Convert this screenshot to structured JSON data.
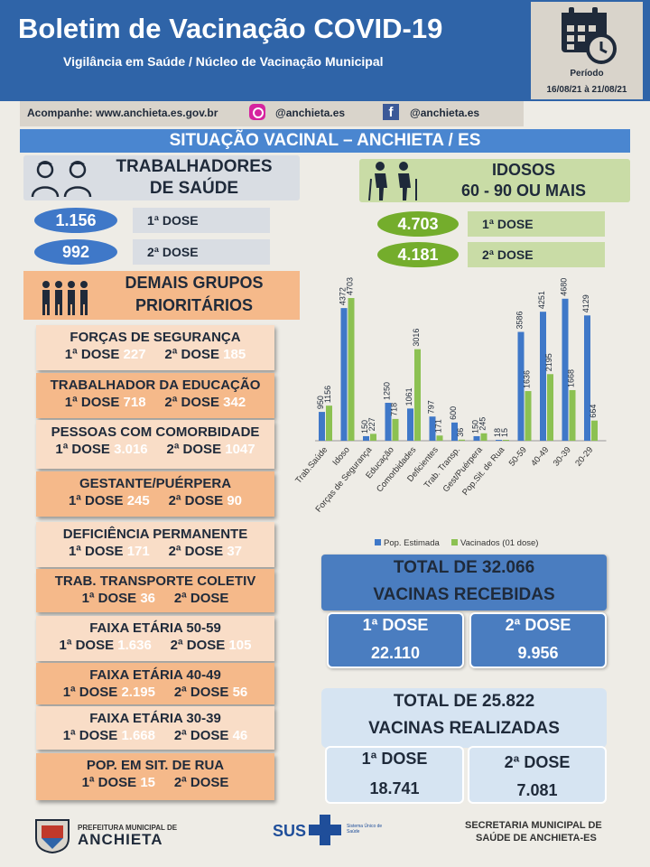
{
  "header": {
    "title": "Boletim de Vacinação COVID-19",
    "subtitle": "Vigilância em Saúde / Núcleo de Vacinação Municipal",
    "period_label": "Período",
    "period_dates": "16/08/21 à 21/08/21"
  },
  "follow": {
    "site": "Acompanhe: www.anchieta.es.gov.br",
    "instagram": "@anchieta.es",
    "facebook": "@anchieta.es"
  },
  "situacao": "SITUAÇÃO VACINAL – ANCHIETA / ES",
  "saude": {
    "title_line1": "TRABALHADORES",
    "title_line2": "DE SAÚDE",
    "dose1_value": "1.156",
    "dose1_label": "1ª DOSE",
    "dose2_value": "992",
    "dose2_label": "2ª DOSE"
  },
  "idosos": {
    "title_line1": "IDOSOS",
    "title_line2": "60 - 90 OU MAIS",
    "dose1_value": "4.703",
    "dose1_label": "1ª DOSE",
    "dose2_value": "4.181",
    "dose2_label": "2ª DOSE"
  },
  "demais": {
    "title_line1": "DEMAIS GRUPOS",
    "title_line2": "PRIORITÁRIOS"
  },
  "groups": [
    {
      "title": "FORÇAS DE SEGURANÇA",
      "d1_label": "1ª DOSE",
      "d1": "227",
      "d2_label": "2ª DOSE",
      "d2": "185"
    },
    {
      "title": "TRABALHADOR DA EDUCAÇÃO",
      "d1_label": "1ª DOSE",
      "d1": "718",
      "d2_label": "2ª DOSE",
      "d2": "342"
    },
    {
      "title": "PESSOAS COM COMORBIDADE",
      "d1_label": "1ª DOSE",
      "d1": "3.016",
      "d2_label": "2ª DOSE",
      "d2": "1047"
    },
    {
      "title": "GESTANTE/PUÉRPERA",
      "d1_label": "1ª DOSE",
      "d1": "245",
      "d2_label": "2ª DOSE",
      "d2": "90"
    },
    {
      "title": "DEFICIÊNCIA PERMANENTE",
      "d1_label": "1ª DOSE",
      "d1": "171",
      "d2_label": "2ª DOSE",
      "d2": "37"
    },
    {
      "title": "TRAB. TRANSPORTE COLETIV",
      "d1_label": "1ª DOSE",
      "d1": "36",
      "d2_label": "2ª DOSE",
      "d2": ""
    },
    {
      "title": "FAIXA ETÁRIA 50-59",
      "d1_label": "1ª DOSE",
      "d1": "1.636",
      "d2_label": "2ª DOSE",
      "d2": "105"
    },
    {
      "title": "FAIXA ETÁRIA 40-49",
      "d1_label": "1ª DOSE",
      "d1": "2.195",
      "d2_label": "2ª DOSE",
      "d2": "56"
    },
    {
      "title": "FAIXA ETÁRIA 30-39",
      "d1_label": "1ª DOSE",
      "d1": "1.668",
      "d2_label": "2ª DOSE",
      "d2": "46"
    },
    {
      "title": "POP. EM SIT. DE RUA",
      "d1_label": "1ª DOSE",
      "d1": "15",
      "d2_label": "2ª DOSE",
      "d2": ""
    }
  ],
  "recebidas": {
    "line1": "TOTAL DE 32.066",
    "line2": "VACINAS RECEBIDAS",
    "d1_label": "1ª DOSE",
    "d1_value": "22.110",
    "d2_label": "2ª DOSE",
    "d2_value": "9.956"
  },
  "realizadas": {
    "line1": "TOTAL DE 25.822",
    "line2": "VACINAS REALIZADAS",
    "d1_label": "1ª DOSE",
    "d1_value": "18.741",
    "d2_label": "2ª DOSE",
    "d2_value": "7.081"
  },
  "footer": {
    "prefeitura_small": "PREFEITURA MUNICIPAL DE",
    "prefeitura_big": "ANCHIETA",
    "sus": "SUS",
    "sus_small": "Sistema Único de Saúde",
    "secretaria_line1": "SECRETARIA MUNICIPAL DE",
    "secretaria_line2": "SAÚDE DE ANCHIETA-ES"
  },
  "colors": {
    "header_blue": "#2f64a8",
    "series_estimada": "#3f78c8",
    "series_vacinados": "#8cc152"
  },
  "chart_data": {
    "type": "bar",
    "categories": [
      "Trab.Saúde",
      "Idoso",
      "Forças de Segurança",
      "Educação",
      "Comorbidades",
      "Deficientes",
      "Trab. Transp.",
      "Gest/Puérpera",
      "Pop.Sit. de Rua",
      "50-59",
      "40-49",
      "30-39",
      "20-29"
    ],
    "series": [
      {
        "name": "Pop. Estimada",
        "values": [
          950,
          4372,
          150,
          1250,
          1061,
          797,
          600,
          150,
          18,
          3586,
          4251,
          4680,
          4129
        ]
      },
      {
        "name": "Vacinados (01 dose)",
        "values": [
          1156,
          4703,
          227,
          718,
          3016,
          171,
          36,
          245,
          15,
          1636,
          2195,
          1668,
          664
        ]
      }
    ],
    "value_labels": [
      [
        "950",
        "4372",
        "150",
        "1250",
        "1061",
        "797",
        "600",
        "150",
        "18",
        "3586",
        "4251",
        "4680",
        "4129"
      ],
      [
        "1156",
        "4703",
        "227",
        "718",
        "3016",
        "171",
        "36",
        "245",
        "15",
        "1636",
        "2195",
        "1668",
        "664"
      ]
    ],
    "ylim": [
      0,
      4703
    ],
    "legend": "bottom",
    "grid": false
  }
}
